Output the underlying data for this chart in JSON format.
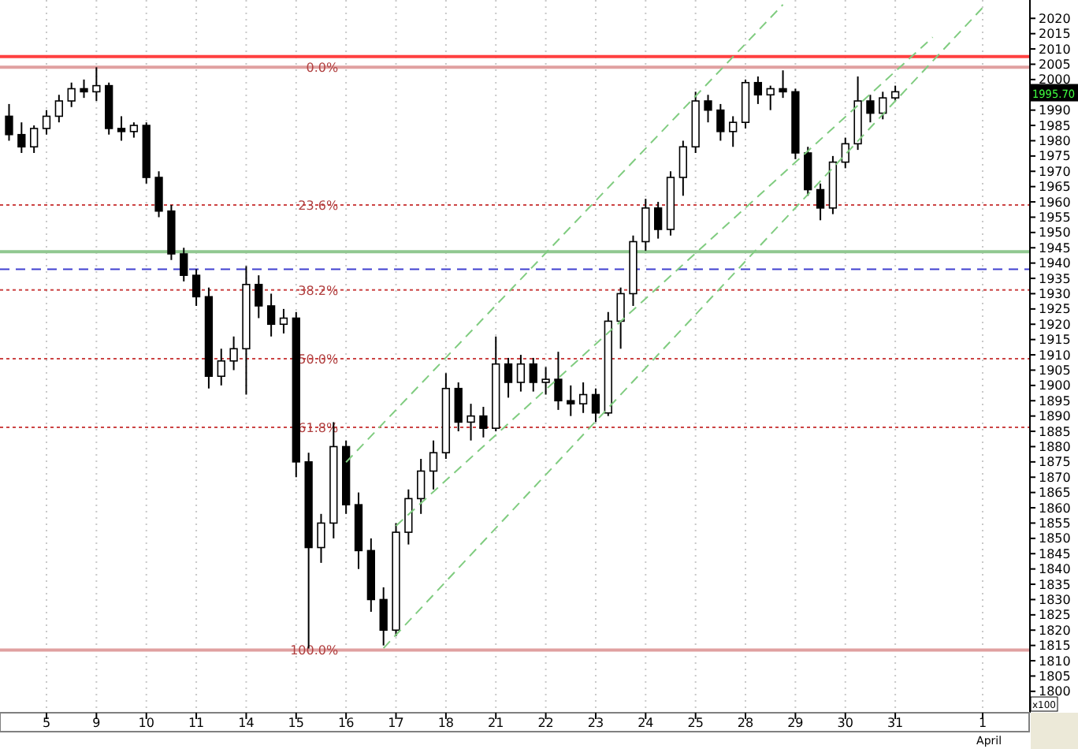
{
  "chart_data": {
    "type": "candlestick",
    "categories": [
      null,
      null,
      null,
      "5",
      null,
      null,
      null,
      "9",
      null,
      null,
      null,
      "10",
      null,
      null,
      null,
      "11",
      null,
      null,
      null,
      "14",
      null,
      null,
      null,
      "15",
      null,
      null,
      null,
      "16",
      null,
      null,
      null,
      "17",
      null,
      null,
      null,
      "18",
      null,
      null,
      null,
      "21",
      null,
      null,
      null,
      "22",
      null,
      null,
      null,
      "23",
      null,
      null,
      null,
      "24",
      null,
      null,
      null,
      "25",
      null,
      null,
      null,
      "28",
      null,
      null,
      null,
      "29",
      null,
      null,
      null,
      "30",
      null,
      null,
      null,
      "31",
      null,
      null,
      null,
      null,
      null,
      null,
      "1",
      null,
      null,
      null
    ],
    "series": [
      {
        "color": "#000000",
        "ohlc": [
          [
            1988,
            1992,
            1980,
            1982
          ],
          [
            1982,
            1986,
            1976,
            1978
          ],
          [
            1978,
            1985,
            1976,
            1984
          ],
          [
            1984,
            1990,
            1982,
            1988
          ],
          [
            1988,
            1995,
            1986,
            1993
          ],
          [
            1993,
            1999,
            1991,
            1997
          ],
          [
            1997,
            2000,
            1994,
            1996
          ],
          [
            1996,
            2004,
            1993,
            1998
          ],
          [
            1998,
            1999,
            1982,
            1984
          ],
          [
            1984,
            1988,
            1980,
            1983
          ],
          [
            1983,
            1986,
            1981,
            1985
          ],
          [
            1985,
            1986,
            1966,
            1968
          ],
          [
            1968,
            1970,
            1955,
            1957
          ],
          [
            1957,
            1959,
            1941,
            1943
          ],
          [
            1943,
            1945,
            1934,
            1936
          ],
          [
            1936,
            1938,
            1926,
            1929
          ],
          [
            1929,
            1932,
            1899,
            1903
          ],
          [
            1903,
            1912,
            1900,
            1908
          ],
          [
            1908,
            1916,
            1905,
            1912
          ],
          [
            1912,
            1939,
            1897,
            1933
          ],
          [
            1933,
            1936,
            1922,
            1926
          ],
          [
            1926,
            1930,
            1916,
            1920
          ],
          [
            1920,
            1925,
            1917,
            1922
          ],
          [
            1922,
            1924,
            1870,
            1875
          ],
          [
            1875,
            1878,
            1814,
            1847
          ],
          [
            1847,
            1858,
            1842,
            1855
          ],
          [
            1855,
            1888,
            1850,
            1880
          ],
          [
            1880,
            1882,
            1858,
            1861
          ],
          [
            1861,
            1865,
            1840,
            1846
          ],
          [
            1846,
            1850,
            1826,
            1830
          ],
          [
            1830,
            1834,
            1815,
            1820
          ],
          [
            1820,
            1855,
            1818,
            1852
          ],
          [
            1852,
            1866,
            1848,
            1863
          ],
          [
            1863,
            1876,
            1858,
            1872
          ],
          [
            1872,
            1882,
            1866,
            1878
          ],
          [
            1878,
            1904,
            1876,
            1899
          ],
          [
            1899,
            1901,
            1885,
            1888
          ],
          [
            1888,
            1894,
            1882,
            1890
          ],
          [
            1890,
            1893,
            1883,
            1886
          ],
          [
            1886,
            1916,
            1885,
            1907
          ],
          [
            1907,
            1909,
            1896,
            1901
          ],
          [
            1901,
            1910,
            1898,
            1907
          ],
          [
            1907,
            1909,
            1898,
            1901
          ],
          [
            1901,
            1906,
            1897,
            1902
          ],
          [
            1902,
            1911,
            1892,
            1895
          ],
          [
            1895,
            1900,
            1890,
            1894
          ],
          [
            1894,
            1901,
            1891,
            1897
          ],
          [
            1897,
            1899,
            1888,
            1891
          ],
          [
            1891,
            1924,
            1890,
            1921
          ],
          [
            1921,
            1932,
            1912,
            1930
          ],
          [
            1930,
            1949,
            1926,
            1947
          ],
          [
            1947,
            1961,
            1944,
            1958
          ],
          [
            1958,
            1960,
            1948,
            1951
          ],
          [
            1951,
            1970,
            1949,
            1968
          ],
          [
            1968,
            1980,
            1962,
            1978
          ],
          [
            1978,
            1996,
            1976,
            1993
          ],
          [
            1993,
            1995,
            1986,
            1990
          ],
          [
            1990,
            1992,
            1980,
            1983
          ],
          [
            1983,
            1988,
            1978,
            1986
          ],
          [
            1986,
            2000,
            1984,
            1999
          ],
          [
            1999,
            2001,
            1992,
            1995
          ],
          [
            1995,
            1998,
            1990,
            1997
          ],
          [
            1997,
            2003,
            1994,
            1996
          ],
          [
            1996,
            1997,
            1974,
            1976
          ],
          [
            1976,
            1978,
            1962,
            1964
          ],
          [
            1964,
            1966,
            1954,
            1958
          ],
          [
            1958,
            1975,
            1956,
            1973
          ],
          [
            1973,
            1981,
            1971,
            1979
          ],
          [
            1979,
            2001,
            1977,
            1993
          ],
          [
            1993,
            1995,
            1986,
            1989
          ],
          [
            1989,
            1996,
            1987,
            1994
          ],
          [
            1994,
            1998,
            1993,
            1996
          ],
          null,
          null,
          null,
          null,
          null,
          null,
          null,
          null,
          null,
          null
        ]
      },
      {
        "type": "line",
        "color": "#80cc80",
        "line_style": "dashed",
        "values": [
          null,
          null,
          null,
          null,
          null,
          null,
          null,
          null,
          null,
          null,
          null,
          null,
          null,
          null,
          null,
          null,
          null,
          null,
          null,
          null,
          null,
          null,
          null,
          null,
          null,
          null,
          null,
          1874.9,
          null,
          null,
          null,
          null,
          null,
          null,
          null,
          null,
          null,
          null,
          null,
          null,
          null,
          null,
          null,
          null,
          null,
          null,
          null,
          null,
          null,
          null,
          null,
          null,
          null,
          null,
          null,
          null,
          null,
          null,
          null,
          null,
          null,
          null,
          2024.5,
          null,
          null,
          null,
          null,
          null,
          null,
          null,
          null,
          null,
          null,
          null,
          null,
          null,
          null,
          null,
          null,
          null,
          null,
          null
        ]
      },
      {
        "type": "line",
        "color": "#80cc80",
        "line_style": "dashed",
        "values": [
          null,
          null,
          null,
          null,
          null,
          null,
          null,
          null,
          null,
          null,
          null,
          null,
          null,
          null,
          null,
          null,
          null,
          null,
          null,
          null,
          null,
          null,
          null,
          null,
          null,
          null,
          null,
          null,
          null,
          null,
          null,
          1854.1,
          null,
          null,
          null,
          null,
          null,
          null,
          null,
          null,
          null,
          null,
          null,
          null,
          null,
          null,
          null,
          null,
          null,
          null,
          null,
          null,
          null,
          null,
          null,
          null,
          null,
          null,
          null,
          null,
          null,
          null,
          null,
          null,
          null,
          null,
          null,
          null,
          null,
          null,
          null,
          null,
          null,
          null,
          2013.8,
          null,
          null,
          null,
          null,
          null,
          null,
          null
        ]
      },
      {
        "type": "line",
        "color": "#80cc80",
        "line_style": "dashed",
        "values": [
          null,
          null,
          null,
          null,
          null,
          null,
          null,
          null,
          null,
          null,
          null,
          null,
          null,
          null,
          null,
          null,
          null,
          null,
          null,
          null,
          null,
          null,
          null,
          null,
          null,
          null,
          null,
          null,
          null,
          null,
          1814.1,
          null,
          null,
          null,
          null,
          null,
          null,
          null,
          null,
          null,
          null,
          null,
          null,
          null,
          null,
          null,
          null,
          null,
          null,
          null,
          null,
          null,
          null,
          null,
          null,
          null,
          null,
          null,
          null,
          null,
          null,
          null,
          null,
          null,
          null,
          null,
          null,
          null,
          null,
          null,
          null,
          null,
          null,
          null,
          null,
          null,
          null,
          null,
          2023.5,
          null,
          null,
          null
        ]
      }
    ],
    "ylim": [
      1793,
      2026
    ],
    "yticks": [
      1800,
      1805,
      1810,
      1815,
      1820,
      1825,
      1830,
      1835,
      1840,
      1845,
      1850,
      1855,
      1860,
      1865,
      1870,
      1875,
      1880,
      1885,
      1890,
      1895,
      1900,
      1905,
      1910,
      1915,
      1920,
      1925,
      1930,
      1935,
      1940,
      1945,
      1950,
      1955,
      1960,
      1965,
      1970,
      1975,
      1980,
      1985,
      1990,
      {
        "value": 1995,
        "label": null
      },
      2000,
      2005,
      2010,
      2015,
      2020
    ],
    "grid": "x",
    "ref_lines": [
      {
        "axis": "y",
        "value": 2007.5,
        "color": "#ff4040",
        "line_style": "solid"
      },
      {
        "axis": "y",
        "value": 2004,
        "color": "#e0a0a0",
        "line_style": "solid"
      },
      {
        "axis": "y",
        "value": 1959,
        "color": "#cc4444",
        "line_style": "dotted"
      },
      {
        "axis": "y",
        "value": 1943.7,
        "color": "#90c890",
        "line_style": "solid"
      },
      {
        "axis": "y",
        "value": 1938,
        "color": "#4040d0",
        "line_style": "dashed"
      },
      {
        "axis": "y",
        "value": 1931.2,
        "color": "#cc4444",
        "line_style": "dotted"
      },
      {
        "axis": "y",
        "value": 1908.75,
        "color": "#cc4444",
        "line_style": "dotted"
      },
      {
        "axis": "y",
        "value": 1886.3,
        "color": "#cc4444",
        "line_style": "dotted"
      },
      {
        "axis": "y",
        "value": 1813.5,
        "color": "#e0a0a0",
        "line_style": "solid"
      }
    ],
    "annotations": [
      "April",
      "x100",
      "1995.70",
      {
        "text": "0.0%",
        "y": 2004
      },
      {
        "text": "23.6%",
        "y": 1959
      },
      {
        "text": "38.2%",
        "y": 1931.2
      },
      {
        "text": "50.0%",
        "y": 1908.75
      },
      {
        "text": "61.8%",
        "y": 1886.3
      },
      {
        "text": "100.0%",
        "y": 1813.5
      }
    ]
  }
}
